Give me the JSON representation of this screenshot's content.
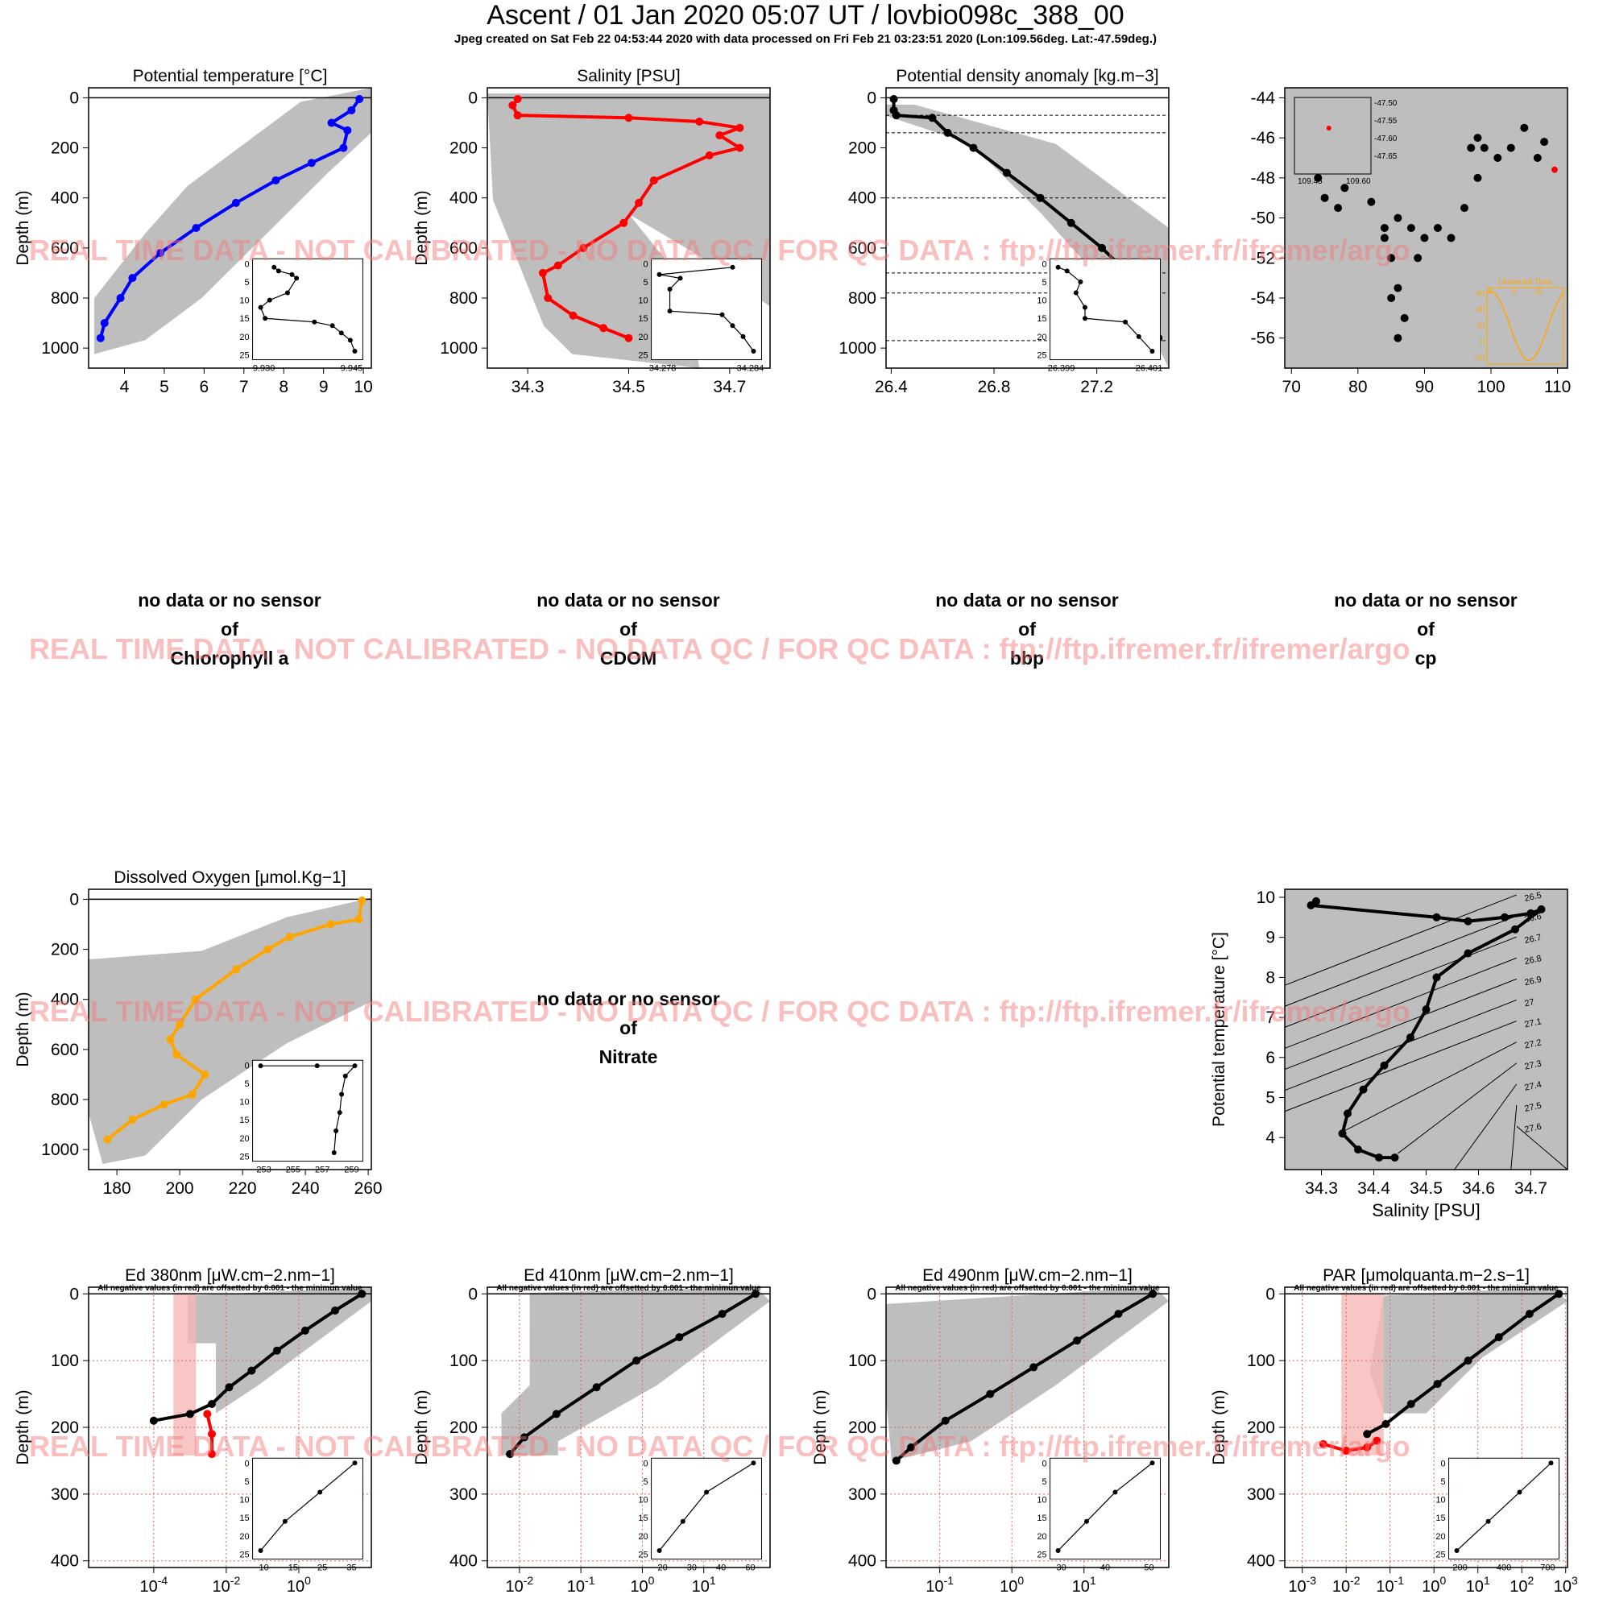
{
  "header": {
    "title": "Ascent / 01 Jan 2020 05:07 UT /  lovbio098c_388_00",
    "subtitle": "Jpeg created on Sat Feb 22 04:53:44 2020 with data processed on Fri Feb 21 03:23:51 2020 (Lon:109.56deg. Lat:-47.59deg.)"
  },
  "watermark": "REAL TIME DATA - NOT CALIBRATED - NO DATA QC   /  FOR QC DATA : ftp://ftp.ifremer.fr/ifremer/argo",
  "no_data_panels": [
    {
      "line1": "no data or no sensor",
      "line2": "of",
      "param": "Chlorophyll a"
    },
    {
      "line1": "no data or no sensor",
      "line2": "of",
      "param": "CDOM"
    },
    {
      "line1": "no data or no sensor",
      "line2": "of",
      "param": "bbp"
    },
    {
      "line1": "no data or no sensor",
      "line2": "of",
      "param": "cp"
    },
    {
      "line1": "no data or no sensor",
      "line2": "of",
      "param": "Nitrate"
    }
  ],
  "colors": {
    "background_cloud": "#bebebe",
    "temperature": "#0000ff",
    "salinity": "#ff0000",
    "density": "#000000",
    "oxygen": "#ffa500",
    "negative": "#f47a7a",
    "grid": "#e06060"
  },
  "chart_data": [
    {
      "id": "temperature",
      "type": "scatter",
      "title": "Potential temperature [°C]",
      "ylabel": "Depth (m)",
      "xlim": [
        3.1,
        10.2
      ],
      "ylim": [
        1080,
        -40
      ],
      "y_reversed": true,
      "xticks": [
        4,
        5,
        6,
        7,
        8,
        9,
        10
      ],
      "yticks": [
        0,
        200,
        400,
        600,
        800,
        1000
      ],
      "series": [
        {
          "color": "blue",
          "x": [
            9.9,
            9.7,
            9.2,
            9.6,
            9.5,
            8.7,
            7.8,
            6.8,
            5.8,
            4.9,
            4.2,
            3.9,
            3.5,
            3.4
          ],
          "y": [
            5,
            50,
            100,
            130,
            200,
            260,
            330,
            420,
            520,
            620,
            720,
            800,
            900,
            960
          ]
        }
      ],
      "inset": {
        "xticks": [
          "9.930",
          "9.945"
        ],
        "yticks": [
          0,
          5,
          10,
          15,
          20,
          25
        ],
        "x": [
          9.933,
          9.934,
          9.937,
          9.938,
          9.936,
          9.932,
          9.93,
          9.931,
          9.942,
          9.946,
          9.948,
          9.95,
          9.951
        ],
        "y": [
          1,
          2,
          3,
          4,
          8,
          10,
          12,
          15,
          16,
          17,
          19,
          21,
          24
        ]
      }
    },
    {
      "id": "salinity",
      "type": "scatter",
      "title": "Salinity [PSU]",
      "ylabel": "Depth (m)",
      "xlim": [
        34.22,
        34.78
      ],
      "ylim": [
        1080,
        -40
      ],
      "y_reversed": true,
      "xticks": [
        34.3,
        34.5,
        34.7
      ],
      "yticks": [
        0,
        200,
        400,
        600,
        800,
        1000
      ],
      "series": [
        {
          "color": "red",
          "x": [
            34.28,
            34.27,
            34.28,
            34.5,
            34.64,
            34.72,
            34.68,
            34.72,
            34.66,
            34.55,
            34.52,
            34.49,
            34.41,
            34.36,
            34.33,
            34.34,
            34.39,
            34.45,
            34.5
          ],
          "y": [
            5,
            30,
            70,
            80,
            95,
            120,
            150,
            200,
            230,
            330,
            420,
            500,
            600,
            670,
            700,
            800,
            870,
            920,
            960
          ]
        }
      ],
      "inset": {
        "xticks": [
          "34.278",
          "34.284"
        ],
        "yticks": [
          0,
          5,
          10,
          15,
          20,
          25
        ],
        "x": [
          34.285,
          34.278,
          34.28,
          34.279,
          34.279,
          34.284,
          34.285,
          34.286,
          34.287
        ],
        "y": [
          1,
          3,
          4,
          7,
          13,
          14,
          17,
          20,
          24
        ]
      }
    },
    {
      "id": "density",
      "type": "scatter",
      "title": "Potential density anomaly [kg.m−3]",
      "ylabel": "",
      "xlim": [
        26.38,
        27.48
      ],
      "ylim": [
        1080,
        -40
      ],
      "y_reversed": true,
      "xticks": [
        26.4,
        26.8,
        27.2
      ],
      "yticks": [
        0,
        200,
        400,
        600,
        800,
        1000
      ],
      "hlines": [
        70,
        140,
        400,
        700,
        780,
        970
      ],
      "series": [
        {
          "color": "black",
          "x": [
            26.41,
            26.41,
            26.42,
            26.56,
            26.62,
            26.72,
            26.85,
            26.98,
            27.1,
            27.22,
            27.32,
            27.4,
            27.44
          ],
          "y": [
            5,
            50,
            70,
            80,
            140,
            200,
            300,
            400,
            500,
            600,
            700,
            850,
            960
          ]
        }
      ],
      "inset": {
        "xticks": [
          "26.399",
          "26.401"
        ],
        "yticks": [
          0,
          5,
          10,
          15,
          20,
          25
        ],
        "x": [
          26.399,
          26.3992,
          26.3995,
          26.3994,
          26.3996,
          26.3996,
          26.4005,
          26.4008,
          26.4011
        ],
        "y": [
          1,
          2,
          5,
          8,
          12,
          15,
          16,
          20,
          24
        ]
      }
    },
    {
      "id": "trajectory",
      "type": "scatter",
      "title": "",
      "xlabel": "",
      "ylabel": "",
      "xlim": [
        69,
        111.5
      ],
      "ylim": [
        -57.5,
        -43.5
      ],
      "xticks": [
        70,
        80,
        90,
        100,
        110
      ],
      "yticks": [
        -44,
        -46,
        -48,
        -50,
        -52,
        -54,
        -56
      ],
      "series": [
        {
          "color": "black",
          "x": [
            74,
            75,
            77,
            78,
            82,
            84,
            85,
            86,
            87,
            86,
            85,
            84,
            86,
            88,
            89,
            90,
            92,
            94,
            96,
            98,
            97,
            98,
            99,
            101,
            103,
            105,
            107,
            108
          ],
          "y": [
            -48,
            -49,
            -49.5,
            -48.5,
            -49.2,
            -50.5,
            -52,
            -53.5,
            -55,
            -56,
            -54,
            -51,
            -50,
            -50.5,
            -52,
            -51,
            -50.5,
            -51,
            -49.5,
            -48,
            -46.5,
            -46,
            -46.5,
            -47,
            -46.5,
            -45.5,
            -47,
            -46.2
          ]
        },
        {
          "color": "red",
          "x": [
            109.56
          ],
          "y": [
            -47.59
          ]
        }
      ],
      "inset_map": {
        "ylabels": [
          "-47.50",
          "-47.55",
          "-47.60",
          "-47.65"
        ],
        "xlabels": [
          "109.45",
          "109.60"
        ]
      },
      "inset_sun": {
        "title": "Universal Time",
        "ylabel": "Solar Angle (deg. C)",
        "xticks": [
          0,
          5,
          15
        ],
        "yticks": [
          60,
          40,
          20,
          0,
          -20
        ]
      }
    },
    {
      "id": "oxygen",
      "type": "scatter",
      "title": "Dissolved Oxygen [μmol.Kg−1]",
      "ylabel": "Depth (m)",
      "xlim": [
        171,
        261
      ],
      "ylim": [
        1080,
        -40
      ],
      "y_reversed": true,
      "xticks": [
        180,
        200,
        220,
        240,
        260
      ],
      "yticks": [
        0,
        200,
        400,
        600,
        800,
        1000
      ],
      "series": [
        {
          "color": "orange",
          "x": [
            258,
            257,
            248,
            235,
            228,
            218,
            205,
            200,
            197,
            199,
            208,
            204,
            195,
            185,
            177
          ],
          "y": [
            5,
            80,
            100,
            150,
            200,
            280,
            400,
            500,
            560,
            620,
            700,
            780,
            820,
            880,
            960
          ]
        }
      ],
      "inset": {
        "xticks": [
          "253",
          "255",
          "257",
          "259"
        ],
        "yticks": [
          0,
          5,
          10,
          15,
          20,
          25
        ],
        "x": [
          253,
          256,
          258,
          257.5,
          257.3,
          257.2,
          257.0,
          256.9
        ],
        "y": [
          0.2,
          0.2,
          0.2,
          3,
          8,
          13,
          18,
          24
        ]
      }
    },
    {
      "id": "ts_diagram",
      "type": "scatter",
      "title": "",
      "xlabel": "Salinity [PSU]",
      "ylabel": "Potential temperature [°C]",
      "xlim": [
        34.23,
        34.77
      ],
      "ylim": [
        3.2,
        10.2
      ],
      "xticks": [
        34.3,
        34.4,
        34.5,
        34.6,
        34.7
      ],
      "yticks": [
        4,
        5,
        6,
        7,
        8,
        9,
        10
      ],
      "isopycnal_labels": [
        "26.5",
        "26.6",
        "26.7",
        "26.8",
        "26.9",
        "27",
        "27.1",
        "27.2",
        "27.3",
        "27.4",
        "27.5",
        "27.6"
      ],
      "series": [
        {
          "color": "black",
          "x": [
            34.29,
            34.28,
            34.52,
            34.58,
            34.65,
            34.7,
            34.72,
            34.67,
            34.58,
            34.52,
            34.5,
            34.47,
            34.42,
            34.38,
            34.35,
            34.34,
            34.37,
            34.41,
            34.44
          ],
          "y": [
            9.9,
            9.8,
            9.5,
            9.4,
            9.5,
            9.6,
            9.7,
            9.2,
            8.6,
            8.0,
            7.2,
            6.5,
            5.8,
            5.2,
            4.6,
            4.1,
            3.7,
            3.5,
            3.5
          ]
        }
      ]
    },
    {
      "id": "ed380",
      "type": "scatter",
      "log_x": true,
      "title": "Ed 380nm [μW.cm−2.nm−1]",
      "subtitle": "All negative values (in red) are offsetted by 0.001 - the minimun value",
      "ylabel": "Depth (m)",
      "xlim": [
        1.6e-06,
        100
      ],
      "ylim": [
        410,
        -10
      ],
      "y_reversed": true,
      "xticks": [
        "10-4",
        "10-2",
        "100"
      ],
      "xtick_values": [
        0.0001,
        0.01,
        1
      ],
      "yticks": [
        0,
        100,
        200,
        300,
        400
      ],
      "series": [
        {
          "color": "black",
          "x": [
            55,
            10,
            1.5,
            0.25,
            0.05,
            0.012,
            0.004,
            0.001,
            0.0001
          ],
          "y": [
            0,
            25,
            55,
            85,
            115,
            140,
            165,
            180,
            190
          ]
        },
        {
          "color": "red",
          "x": [
            0.003,
            0.004,
            0.004
          ],
          "y": [
            180,
            210,
            240
          ]
        }
      ],
      "inset": {
        "xticks": [
          "10",
          "15",
          "25",
          "35"
        ],
        "yticks": [
          0,
          5,
          10,
          15,
          20,
          25
        ],
        "x": [
          35,
          25,
          15,
          8
        ],
        "y": [
          0,
          8,
          16,
          24
        ]
      }
    },
    {
      "id": "ed410",
      "type": "scatter",
      "log_x": true,
      "title": "Ed 410nm [μW.cm−2.nm−1]",
      "subtitle": "All negative values (in red) are offsetted by 0.001 - the minimun value",
      "ylabel": "Depth (m)",
      "xlim": [
        0.003,
        120
      ],
      "ylim": [
        410,
        -10
      ],
      "y_reversed": true,
      "xticks": [
        "10-2",
        "10-1",
        "100",
        "101"
      ],
      "xtick_values": [
        0.01,
        0.1,
        1,
        10
      ],
      "yticks": [
        0,
        100,
        200,
        300,
        400
      ],
      "series": [
        {
          "color": "black",
          "x": [
            70,
            20,
            4,
            0.8,
            0.18,
            0.04,
            0.012,
            0.007
          ],
          "y": [
            0,
            30,
            65,
            100,
            140,
            180,
            215,
            240
          ]
        }
      ],
      "inset": {
        "xticks": [
          "20",
          "30",
          "40",
          "60"
        ],
        "yticks": [
          0,
          5,
          10,
          15,
          20,
          25
        ],
        "x": [
          60,
          40,
          30,
          20
        ],
        "y": [
          0,
          8,
          16,
          24
        ]
      }
    },
    {
      "id": "ed490",
      "type": "scatter",
      "log_x": true,
      "title": "Ed 490nm [μW.cm−2.nm−1]",
      "subtitle": "All negative values (in red) are offsetted by 0.001 - the minimun value",
      "ylabel": "Depth (m)",
      "xlim": [
        0.018,
        150
      ],
      "ylim": [
        410,
        -10
      ],
      "y_reversed": true,
      "xticks": [
        "10-1",
        "100",
        "101"
      ],
      "xtick_values": [
        0.1,
        1,
        10
      ],
      "yticks": [
        0,
        100,
        200,
        300,
        400
      ],
      "series": [
        {
          "color": "black",
          "x": [
            90,
            30,
            8,
            2,
            0.5,
            0.12,
            0.04,
            0.025
          ],
          "y": [
            0,
            30,
            70,
            110,
            150,
            190,
            230,
            250
          ]
        }
      ],
      "inset": {
        "xticks": [
          "30",
          "40",
          "50"
        ],
        "yticks": [
          0,
          5,
          10,
          15,
          20,
          25
        ],
        "x": [
          58,
          45,
          35,
          25
        ],
        "y": [
          0,
          8,
          16,
          24
        ]
      }
    },
    {
      "id": "par",
      "type": "scatter",
      "log_x": true,
      "title": "PAR [μmolquanta.m−2.s−1]",
      "subtitle": "All negative values (in red) are offsetted by 0.001 - the minimun value",
      "ylabel": "Depth (m)",
      "xlim": [
        0.0004,
        1100
      ],
      "ylim": [
        410,
        -10
      ],
      "y_reversed": true,
      "xticks": [
        "10-3",
        "10-2",
        "10-1",
        "100",
        "101",
        "102",
        "103"
      ],
      "xtick_values": [
        0.001,
        0.01,
        0.1,
        1,
        10,
        100,
        1000
      ],
      "yticks": [
        0,
        100,
        200,
        300,
        400
      ],
      "series": [
        {
          "color": "black",
          "x": [
            700,
            150,
            30,
            6,
            1.2,
            0.3,
            0.08,
            0.03
          ],
          "y": [
            0,
            30,
            65,
            100,
            135,
            165,
            195,
            210
          ]
        },
        {
          "color": "red",
          "x": [
            0.003,
            0.01,
            0.03,
            0.05
          ],
          "y": [
            225,
            235,
            230,
            220
          ]
        }
      ],
      "inset": {
        "xticks": [
          "200",
          "400",
          "700"
        ],
        "yticks": [
          0,
          5,
          10,
          15,
          20,
          25
        ],
        "x": [
          700,
          500,
          300,
          100
        ],
        "y": [
          0,
          8,
          16,
          24
        ]
      }
    }
  ]
}
